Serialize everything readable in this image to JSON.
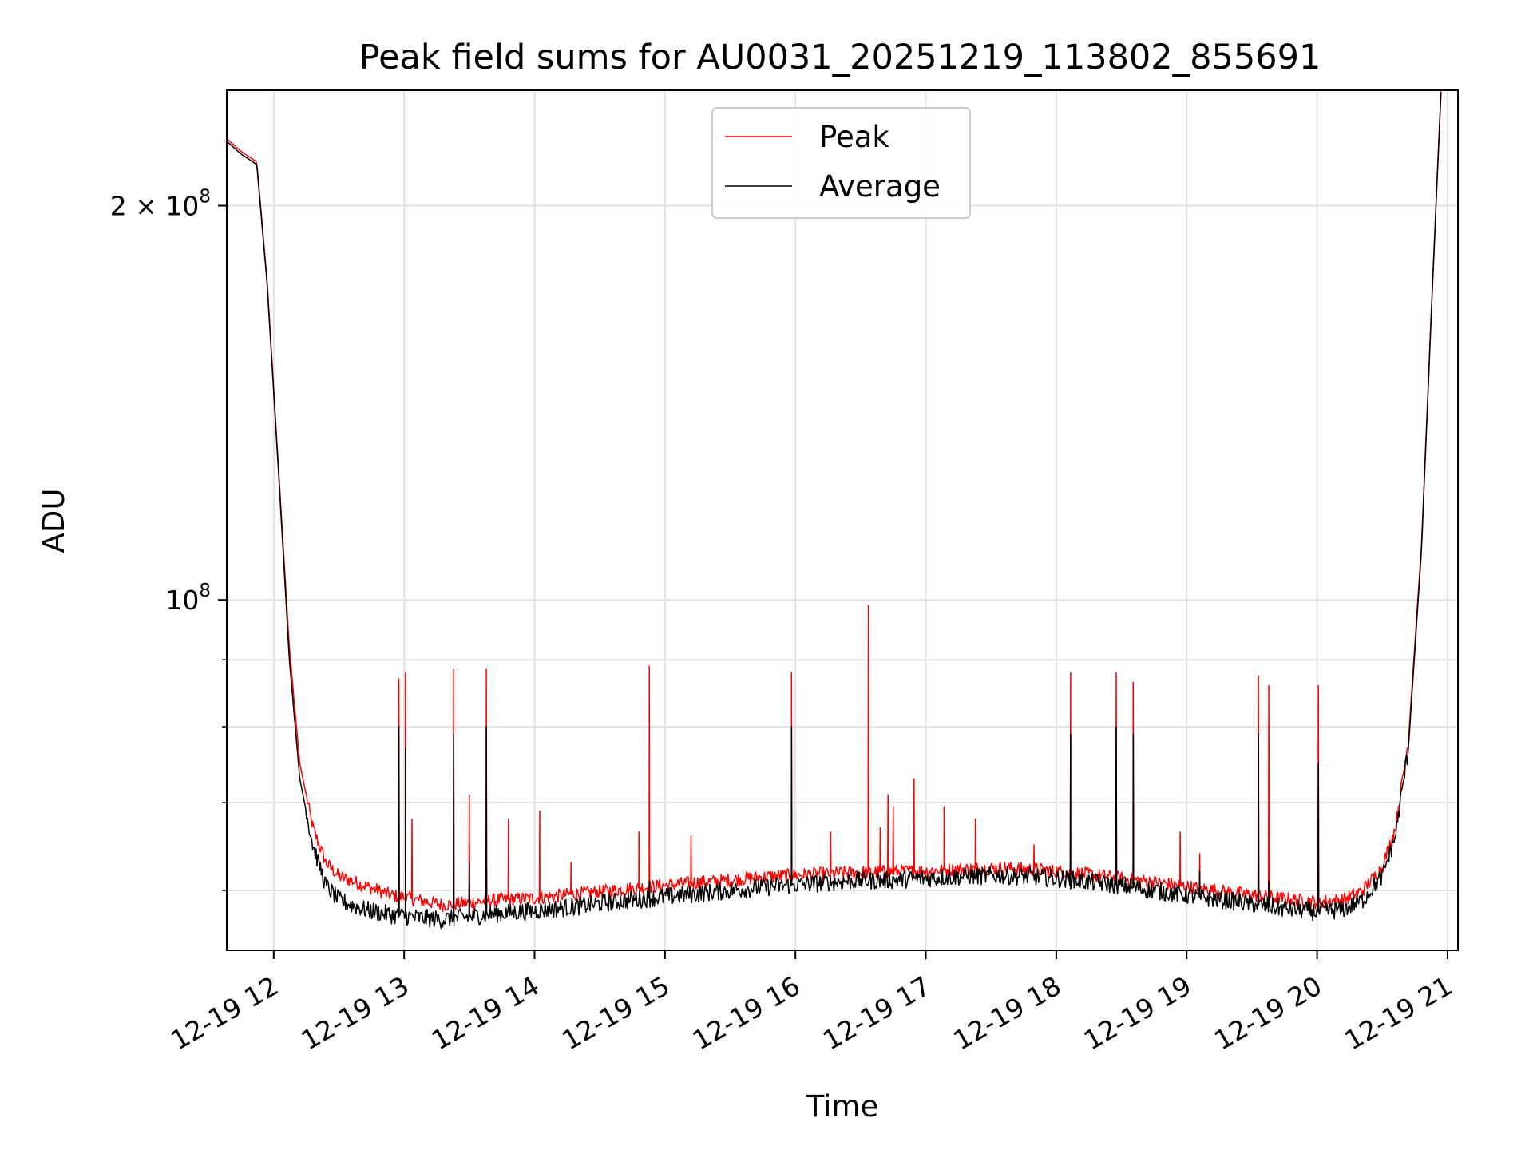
{
  "chart_data": {
    "type": "line",
    "title": "Peak field sums for AU0031_20251219_113802_855691",
    "xlabel": "Time",
    "ylabel": "ADU",
    "yscale": "log",
    "ylim": [
      54000000,
      245000000
    ],
    "xlim_hours": [
      11.64,
      21.08
    ],
    "grid": true,
    "legend_position": "top-center",
    "x_ticks": [
      {
        "hour": 12,
        "label": "12-19 12"
      },
      {
        "hour": 13,
        "label": "12-19 13"
      },
      {
        "hour": 14,
        "label": "12-19 14"
      },
      {
        "hour": 15,
        "label": "12-19 15"
      },
      {
        "hour": 16,
        "label": "12-19 16"
      },
      {
        "hour": 17,
        "label": "12-19 17"
      },
      {
        "hour": 18,
        "label": "12-19 18"
      },
      {
        "hour": 19,
        "label": "12-19 19"
      },
      {
        "hour": 20,
        "label": "12-19 20"
      },
      {
        "hour": 21,
        "label": "12-19 21"
      }
    ],
    "y_major_ticks": [
      {
        "value": 100000000,
        "base": "10",
        "exp": "8"
      },
      {
        "value": 200000000,
        "base": "2 × 10",
        "exp": "8"
      }
    ],
    "y_minor_ticks": [
      60000000,
      70000000,
      80000000,
      90000000
    ],
    "series": [
      {
        "name": "Peak",
        "color": "#ff0000",
        "hours": [
          11.64,
          11.75,
          11.87,
          11.95,
          12.05,
          12.12,
          12.2,
          12.3,
          12.4,
          12.5,
          12.7,
          12.9,
          13.1,
          13.3,
          13.5,
          13.7,
          14.0,
          14.3,
          14.6,
          14.9,
          15.2,
          15.5,
          15.8,
          16.1,
          16.4,
          16.7,
          17.0,
          17.3,
          17.6,
          17.9,
          18.2,
          18.5,
          18.8,
          19.1,
          19.4,
          19.7,
          20.0,
          20.2,
          20.35,
          20.5,
          20.6,
          20.7,
          20.8,
          20.88,
          20.95
        ],
        "values": [
          225000000,
          220000000,
          216000000,
          175000000,
          120000000,
          92000000,
          75000000,
          67000000,
          63000000,
          61500000,
          60500000,
          59500000,
          59000000,
          58500000,
          58700000,
          59000000,
          59200000,
          59600000,
          60000000,
          60400000,
          60800000,
          61100000,
          61500000,
          61700000,
          61900000,
          62000000,
          62100000,
          62300000,
          62400000,
          62200000,
          61800000,
          61300000,
          60800000,
          60200000,
          59700000,
          59200000,
          58800000,
          59000000,
          60000000,
          62500000,
          67000000,
          78000000,
          110000000,
          170000000,
          245000000
        ],
        "spikes": [
          {
            "hour": 12.96,
            "value": 87000000
          },
          {
            "hour": 13.01,
            "value": 88000000
          },
          {
            "hour": 13.06,
            "value": 68000000
          },
          {
            "hour": 13.38,
            "value": 88500000
          },
          {
            "hour": 13.5,
            "value": 71000000
          },
          {
            "hour": 13.63,
            "value": 88500000
          },
          {
            "hour": 13.8,
            "value": 68000000
          },
          {
            "hour": 14.04,
            "value": 69000000
          },
          {
            "hour": 14.28,
            "value": 63000000
          },
          {
            "hour": 14.8,
            "value": 66500000
          },
          {
            "hour": 14.88,
            "value": 89000000
          },
          {
            "hour": 15.2,
            "value": 66000000
          },
          {
            "hour": 15.97,
            "value": 88000000
          },
          {
            "hour": 16.27,
            "value": 66500000
          },
          {
            "hour": 16.56,
            "value": 99000000
          },
          {
            "hour": 16.65,
            "value": 67000000
          },
          {
            "hour": 16.71,
            "value": 71000000
          },
          {
            "hour": 16.75,
            "value": 69500000
          },
          {
            "hour": 16.91,
            "value": 73000000
          },
          {
            "hour": 17.14,
            "value": 69500000
          },
          {
            "hour": 17.38,
            "value": 68000000
          },
          {
            "hour": 17.83,
            "value": 65000000
          },
          {
            "hour": 18.11,
            "value": 88000000
          },
          {
            "hour": 18.46,
            "value": 88000000
          },
          {
            "hour": 18.59,
            "value": 86500000
          },
          {
            "hour": 18.95,
            "value": 66500000
          },
          {
            "hour": 19.1,
            "value": 64000000
          },
          {
            "hour": 19.55,
            "value": 87500000
          },
          {
            "hour": 19.63,
            "value": 86000000
          },
          {
            "hour": 20.01,
            "value": 86000000
          }
        ]
      },
      {
        "name": "Average",
        "color": "#000000",
        "hours": [
          11.64,
          11.75,
          11.87,
          11.95,
          12.05,
          12.12,
          12.2,
          12.3,
          12.4,
          12.5,
          12.7,
          12.9,
          13.1,
          13.3,
          13.5,
          13.7,
          14.0,
          14.3,
          14.6,
          14.9,
          15.2,
          15.5,
          15.8,
          16.1,
          16.4,
          16.7,
          17.0,
          17.3,
          17.6,
          17.9,
          18.2,
          18.5,
          18.8,
          19.1,
          19.4,
          19.7,
          20.0,
          20.2,
          20.35,
          20.5,
          20.6,
          20.7,
          20.8,
          20.88,
          20.95
        ],
        "values": [
          224000000,
          219000000,
          215000000,
          174000000,
          119000000,
          90000000,
          73000000,
          65000000,
          60500000,
          59000000,
          58000000,
          57500000,
          57200000,
          57000000,
          57300000,
          57600000,
          57900000,
          58300000,
          58800000,
          59200000,
          59600000,
          60000000,
          60400000,
          60700000,
          61000000,
          61100000,
          61300000,
          61500000,
          61600000,
          61400000,
          61000000,
          60500000,
          59900000,
          59300000,
          58800000,
          58200000,
          57800000,
          58000000,
          59000000,
          61500000,
          66000000,
          77000000,
          109000000,
          169000000,
          244000000
        ],
        "spikes": [
          {
            "hour": 12.96,
            "value": 80000000
          },
          {
            "hour": 13.01,
            "value": 77000000
          },
          {
            "hour": 13.38,
            "value": 79000000
          },
          {
            "hour": 13.5,
            "value": 63000000
          },
          {
            "hour": 13.63,
            "value": 80000000
          },
          {
            "hour": 14.88,
            "value": 61000000
          },
          {
            "hour": 15.97,
            "value": 80000000
          },
          {
            "hour": 18.11,
            "value": 79000000
          },
          {
            "hour": 18.46,
            "value": 80000000
          },
          {
            "hour": 18.59,
            "value": 79000000
          },
          {
            "hour": 19.1,
            "value": 62000000
          },
          {
            "hour": 19.55,
            "value": 79000000
          },
          {
            "hour": 19.63,
            "value": 61000000
          },
          {
            "hour": 20.01,
            "value": 75000000
          }
        ]
      }
    ]
  }
}
